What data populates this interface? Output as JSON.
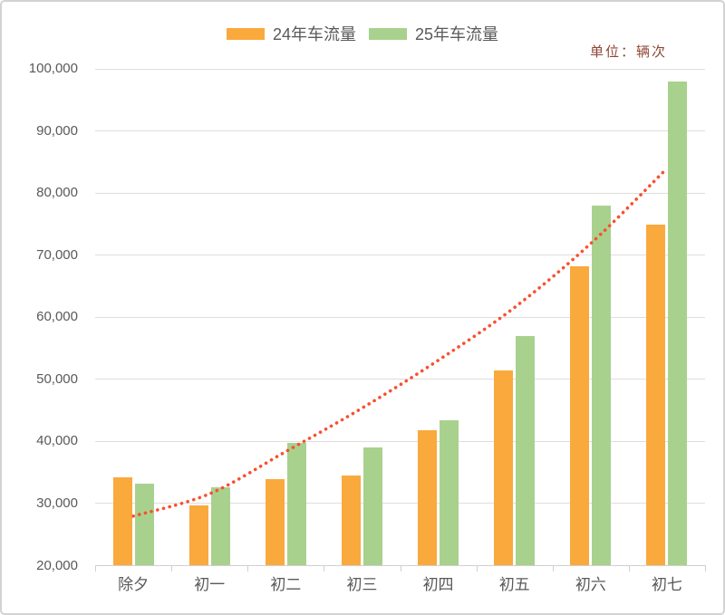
{
  "chart_data": {
    "type": "bar",
    "title": "",
    "unit_label": "单位：辆次",
    "legend_position": "top",
    "grid": "horizontal",
    "categories": [
      "除夕",
      "初一",
      "初二",
      "初三",
      "初四",
      "初五",
      "初六",
      "初七"
    ],
    "series": [
      {
        "name": "24年车流量",
        "color": "#faa93d",
        "values": [
          34100,
          29700,
          33800,
          34400,
          41800,
          51300,
          68200,
          74900
        ]
      },
      {
        "name": "25年车流量",
        "color": "#a9d18e",
        "values": [
          33200,
          32500,
          39700,
          38900,
          43300,
          56900,
          77900,
          97900
        ]
      }
    ],
    "trendline": {
      "color": "#f8502f",
      "style": "dotted",
      "values": [
        27900,
        31500,
        38300,
        45300,
        53000,
        61500,
        71800,
        83900
      ]
    },
    "y_axis": {
      "min": 20000,
      "max": 100000,
      "step": 10000,
      "tick_labels": [
        "20,000",
        "30,000",
        "40,000",
        "50,000",
        "60,000",
        "70,000",
        "80,000",
        "90,000",
        "100,000"
      ]
    },
    "colors": {
      "text": "#595959",
      "gridline": "#dedede",
      "axis": "#d0d0d0",
      "unit_text": "#8e4632"
    }
  }
}
